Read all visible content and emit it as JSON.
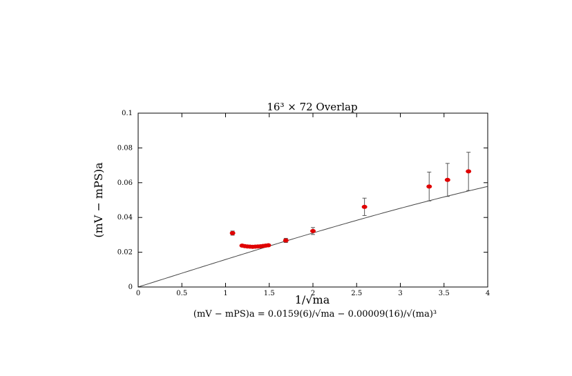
{
  "chart_data": {
    "type": "scatter",
    "title": "16³ × 72 Overlap",
    "xlabel": "1/√ma",
    "ylabel": "(mV − mPS)a",
    "caption": "(mV − mPS)a = 0.0159(6)/√ma − 0.00009(16)/√(ma)³",
    "xlim": [
      0,
      4
    ],
    "ylim": [
      0,
      0.1
    ],
    "x_ticks": [
      "0",
      "0.5",
      "1",
      "1.5",
      "2",
      "2.5",
      "3",
      "3.5",
      "4"
    ],
    "y_ticks": [
      "0",
      "0.02",
      "0.04",
      "0.06",
      "0.08",
      "0.1"
    ],
    "points": [
      {
        "x": 1.08,
        "y": 0.031,
        "err": 0.0012
      },
      {
        "x": 1.19,
        "y": 0.0238,
        "err": 0.0006
      },
      {
        "x": 1.22,
        "y": 0.0235,
        "err": 0.0006
      },
      {
        "x": 1.25,
        "y": 0.0233,
        "err": 0.0006
      },
      {
        "x": 1.28,
        "y": 0.0232,
        "err": 0.0006
      },
      {
        "x": 1.31,
        "y": 0.0231,
        "err": 0.0006
      },
      {
        "x": 1.34,
        "y": 0.0232,
        "err": 0.0006
      },
      {
        "x": 1.37,
        "y": 0.0233,
        "err": 0.0006
      },
      {
        "x": 1.4,
        "y": 0.0234,
        "err": 0.0006
      },
      {
        "x": 1.43,
        "y": 0.0236,
        "err": 0.0006
      },
      {
        "x": 1.46,
        "y": 0.0238,
        "err": 0.0006
      },
      {
        "x": 1.49,
        "y": 0.024,
        "err": 0.0006
      },
      {
        "x": 1.69,
        "y": 0.0268,
        "err": 0.0012
      },
      {
        "x": 2.0,
        "y": 0.0322,
        "err": 0.002
      },
      {
        "x": 2.59,
        "y": 0.0461,
        "err": 0.005
      },
      {
        "x": 3.33,
        "y": 0.0578,
        "err": 0.0083
      },
      {
        "x": 3.54,
        "y": 0.0616,
        "err": 0.0095
      },
      {
        "x": 3.78,
        "y": 0.0665,
        "err": 0.011
      }
    ],
    "fit": {
      "a": 0.0159,
      "b": 9e-05
    },
    "colors": {
      "points": "#e00000",
      "errorbars": "#555555",
      "fit": "#444444",
      "axes": "#000000"
    }
  }
}
